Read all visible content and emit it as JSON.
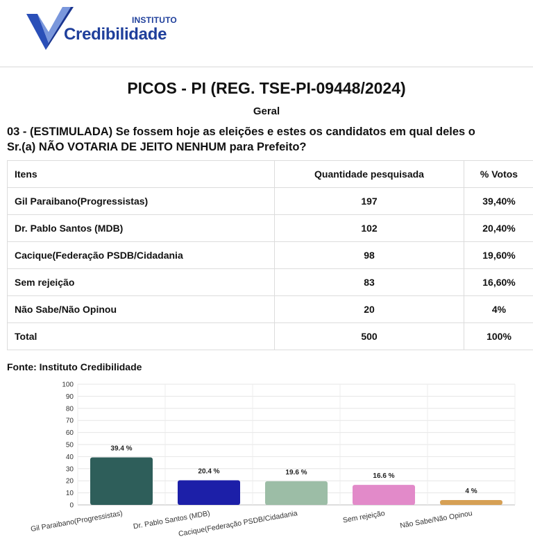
{
  "logo": {
    "top_text": "INSTITUTO",
    "main_text": "Credibilidade"
  },
  "title": "PICOS - PI (REG. TSE-PI-09448/2024)",
  "subtitle": "Geral",
  "question": {
    "line1": "03 - (ESTIMULADA) Se fossem hoje as eleições e estes os candidatos em qual deles o",
    "line2": "Sr.(a) NÃO VOTARIA DE JEITO NENHUM para Prefeito?"
  },
  "table": {
    "headers": [
      "Itens",
      "Quantidade pesquisada",
      "% Votos"
    ],
    "rows": [
      [
        "Gil Paraibano(Progressistas)",
        "197",
        "39,40%"
      ],
      [
        "Dr. Pablo Santos (MDB)",
        "102",
        "20,40%"
      ],
      [
        "Cacique(Federação PSDB/Cidadania",
        "98",
        "19,60%"
      ],
      [
        "Sem rejeição",
        "83",
        "16,60%"
      ],
      [
        "Não Sabe/Não Opinou",
        "20",
        "4%"
      ],
      [
        "Total",
        "500",
        "100%"
      ]
    ]
  },
  "source": "Fonte: Instituto Credibilidade",
  "chart_data": {
    "type": "bar",
    "categories": [
      "Gil Paraibano(Progressistas)",
      "Dr. Pablo Santos (MDB)",
      "Cacique(Federação PSDB/Cidadania",
      "Sem rejeição",
      "Não Sabe/Não Opinou"
    ],
    "values": [
      39.4,
      20.4,
      19.6,
      16.6,
      4
    ],
    "data_labels": [
      "39.4 %",
      "20.4 %",
      "19.6 %",
      "16.6 %",
      "4 %"
    ],
    "colors": [
      "#2e5e5a",
      "#1c1fa8",
      "#9cbda6",
      "#e28ac9",
      "#d6a055"
    ],
    "ylim": [
      0,
      100
    ],
    "yticks": [
      0,
      10,
      20,
      30,
      40,
      50,
      60,
      70,
      80,
      90,
      100
    ],
    "grid": true
  }
}
